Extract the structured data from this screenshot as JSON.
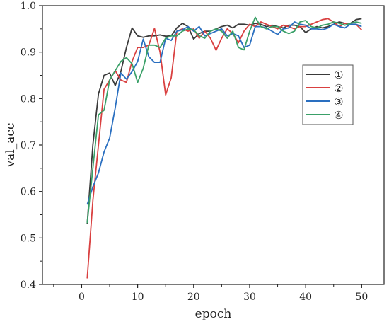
{
  "chart_data": {
    "type": "line",
    "xlabel": "epoch",
    "ylabel": "val_acc",
    "xlim": [
      -7,
      54
    ],
    "ylim": [
      0.4,
      1.0
    ],
    "xticks": [
      0,
      10,
      20,
      30,
      40,
      50
    ],
    "yticks": [
      0.4,
      0.5,
      0.6,
      0.7,
      0.8,
      0.9,
      1.0
    ],
    "legend_position": "right",
    "grid": false,
    "x": [
      1,
      2,
      3,
      4,
      5,
      6,
      7,
      8,
      9,
      10,
      11,
      12,
      13,
      14,
      15,
      16,
      17,
      18,
      19,
      20,
      21,
      22,
      23,
      24,
      25,
      26,
      27,
      28,
      29,
      30,
      31,
      32,
      33,
      34,
      35,
      36,
      37,
      38,
      39,
      40,
      41,
      42,
      43,
      44,
      45,
      46,
      47,
      48,
      49,
      50
    ],
    "series": [
      {
        "name": "①",
        "color": "#3a3a3a",
        "values": [
          0.53,
          0.7,
          0.81,
          0.85,
          0.855,
          0.828,
          0.858,
          0.91,
          0.952,
          0.935,
          0.932,
          0.935,
          0.935,
          0.937,
          0.934,
          0.935,
          0.952,
          0.962,
          0.955,
          0.928,
          0.94,
          0.945,
          0.945,
          0.95,
          0.955,
          0.958,
          0.952,
          0.96,
          0.96,
          0.958,
          0.962,
          0.96,
          0.955,
          0.958,
          0.955,
          0.952,
          0.958,
          0.958,
          0.955,
          0.942,
          0.95,
          0.955,
          0.952,
          0.955,
          0.96,
          0.965,
          0.962,
          0.962,
          0.97,
          0.972
        ]
      },
      {
        "name": "②",
        "color": "#d94040",
        "values": [
          0.413,
          0.58,
          0.7,
          0.82,
          0.84,
          0.86,
          0.84,
          0.835,
          0.88,
          0.91,
          0.91,
          0.915,
          0.951,
          0.9,
          0.808,
          0.845,
          0.945,
          0.95,
          0.945,
          0.95,
          0.93,
          0.945,
          0.93,
          0.904,
          0.93,
          0.95,
          0.94,
          0.92,
          0.945,
          0.96,
          0.955,
          0.965,
          0.96,
          0.955,
          0.95,
          0.958,
          0.955,
          0.95,
          0.955,
          0.955,
          0.96,
          0.965,
          0.97,
          0.972,
          0.965,
          0.955,
          0.962,
          0.96,
          0.96,
          0.948
        ]
      },
      {
        "name": "③",
        "color": "#2a6fc0",
        "values": [
          0.572,
          0.61,
          0.64,
          0.685,
          0.715,
          0.78,
          0.855,
          0.842,
          0.858,
          0.88,
          0.928,
          0.89,
          0.878,
          0.878,
          0.93,
          0.925,
          0.945,
          0.948,
          0.955,
          0.945,
          0.955,
          0.935,
          0.94,
          0.945,
          0.95,
          0.935,
          0.94,
          0.935,
          0.91,
          0.915,
          0.955,
          0.955,
          0.952,
          0.945,
          0.938,
          0.95,
          0.952,
          0.965,
          0.96,
          0.958,
          0.95,
          0.95,
          0.948,
          0.952,
          0.96,
          0.955,
          0.952,
          0.96,
          0.96,
          0.955
        ]
      },
      {
        "name": "④",
        "color": "#3aa068",
        "values": [
          0.532,
          0.65,
          0.765,
          0.775,
          0.84,
          0.86,
          0.88,
          0.888,
          0.875,
          0.835,
          0.865,
          0.915,
          0.915,
          0.91,
          0.93,
          0.935,
          0.935,
          0.945,
          0.95,
          0.948,
          0.935,
          0.93,
          0.945,
          0.95,
          0.945,
          0.93,
          0.945,
          0.91,
          0.905,
          0.945,
          0.975,
          0.955,
          0.95,
          0.955,
          0.955,
          0.945,
          0.94,
          0.945,
          0.965,
          0.968,
          0.955,
          0.952,
          0.958,
          0.96,
          0.965,
          0.962,
          0.958,
          0.962,
          0.965,
          0.962
        ]
      }
    ]
  }
}
